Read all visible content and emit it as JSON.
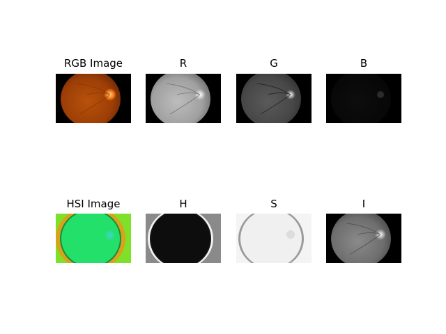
{
  "figure": {
    "panels": [
      {
        "id": "rgb",
        "title": "RGB Image"
      },
      {
        "id": "r",
        "title": "R"
      },
      {
        "id": "g",
        "title": "G"
      },
      {
        "id": "b",
        "title": "B"
      },
      {
        "id": "hsi",
        "title": "HSI Image"
      },
      {
        "id": "h",
        "title": "H"
      },
      {
        "id": "s",
        "title": "S"
      },
      {
        "id": "i",
        "title": "I"
      }
    ]
  }
}
